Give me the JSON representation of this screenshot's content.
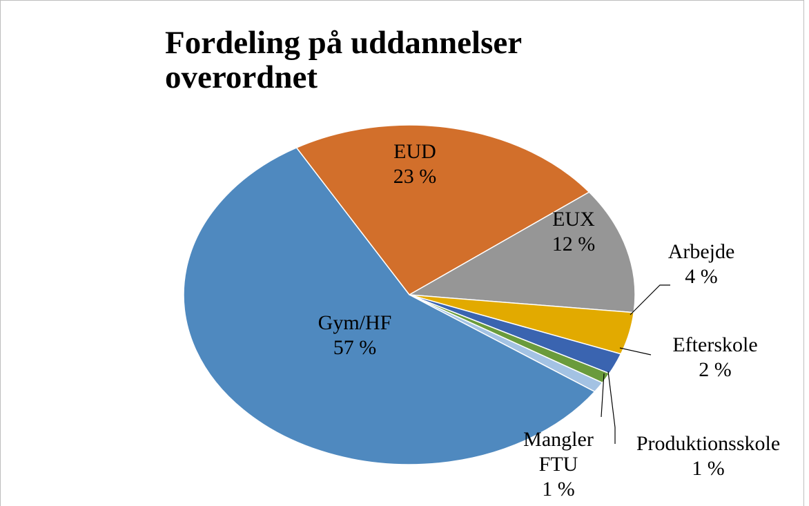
{
  "chart_data": {
    "type": "pie",
    "title": "Fordeling på uddannelser overordnet",
    "categories": [
      "EUD",
      "EUX",
      "Arbejde",
      "Efterskole",
      "Produktionsskole",
      "Mangler FTU",
      "Gym/HF"
    ],
    "values": [
      23,
      12,
      4,
      2,
      1,
      1,
      57
    ],
    "value_labels": [
      "23 %",
      "12 %",
      "4 %",
      "2 %",
      "1 %",
      "1 %",
      "57 %"
    ],
    "colors": [
      "#d26f2b",
      "#969696",
      "#e2aa00",
      "#3a64b0",
      "#6a9b3c",
      "#a3c2e3",
      "#4f89bf"
    ]
  }
}
